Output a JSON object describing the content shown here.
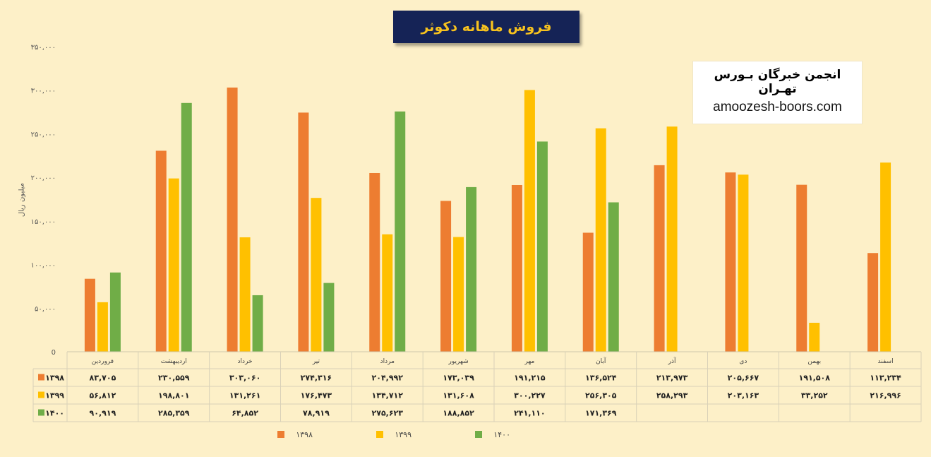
{
  "title": "فروش ماهانه دکوثر",
  "brand": {
    "name": "انجمن خبرگان بـورس تهـران",
    "url": "amoozesh-boors.com"
  },
  "chart_data": {
    "type": "bar",
    "ylabel": "میلیون ریال",
    "ylim": [
      0,
      350000
    ],
    "yticks": [
      0,
      50000,
      100000,
      150000,
      200000,
      250000,
      300000,
      350000
    ],
    "ytick_labels": [
      "0",
      "۵۰,۰۰۰",
      "۱۰۰,۰۰۰",
      "۱۵۰,۰۰۰",
      "۲۰۰,۰۰۰",
      "۲۵۰,۰۰۰",
      "۳۰۰,۰۰۰",
      "۳۵۰,۰۰۰"
    ],
    "categories": [
      "فروردین",
      "اردیبهشت",
      "خرداد",
      "تیر",
      "مرداد",
      "شهریور",
      "مهر",
      "آبان",
      "آذر",
      "دی",
      "بهمن",
      "اسفند"
    ],
    "series": [
      {
        "name": "۱۳۹۸",
        "color": "#ed7d31",
        "values": [
          83705,
          230559,
          303060,
          274316,
          204992,
          173039,
          191215,
          136524,
          213973,
          205667,
          191508,
          113234
        ],
        "labels": [
          "۸۳,۷۰۵",
          "۲۳۰,۵۵۹",
          "۳۰۳,۰۶۰",
          "۲۷۴,۳۱۶",
          "۲۰۴,۹۹۲",
          "۱۷۳,۰۳۹",
          "۱۹۱,۲۱۵",
          "۱۳۶,۵۲۴",
          "۲۱۳,۹۷۳",
          "۲۰۵,۶۶۷",
          "۱۹۱,۵۰۸",
          "۱۱۳,۲۳۴"
        ]
      },
      {
        "name": "۱۳۹۹",
        "color": "#ffc000",
        "values": [
          56812,
          198801,
          131261,
          176473,
          134712,
          131608,
          300227,
          256305,
          258293,
          203163,
          33252,
          216996
        ],
        "labels": [
          "۵۶,۸۱۲",
          "۱۹۸,۸۰۱",
          "۱۳۱,۲۶۱",
          "۱۷۶,۴۷۳",
          "۱۳۴,۷۱۲",
          "۱۳۱,۶۰۸",
          "۳۰۰,۲۲۷",
          "۲۵۶,۳۰۵",
          "۲۵۸,۲۹۳",
          "۲۰۳,۱۶۳",
          "۳۳,۲۵۲",
          "۲۱۶,۹۹۶"
        ]
      },
      {
        "name": "۱۴۰۰",
        "color": "#70ad47",
        "values": [
          90919,
          285359,
          64852,
          78919,
          275623,
          188852,
          241110,
          171369,
          null,
          null,
          null,
          null
        ],
        "labels": [
          "۹۰,۹۱۹",
          "۲۸۵,۳۵۹",
          "۶۴,۸۵۲",
          "۷۸,۹۱۹",
          "۲۷۵,۶۲۳",
          "۱۸۸,۸۵۲",
          "۲۴۱,۱۱۰",
          "۱۷۱,۳۶۹",
          "",
          "",
          "",
          ""
        ]
      }
    ],
    "grid": false,
    "legend": "bottom",
    "data_table": true
  }
}
